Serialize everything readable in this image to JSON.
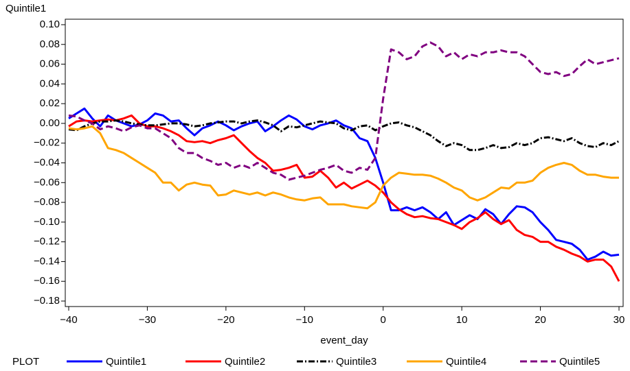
{
  "chart_data": {
    "type": "line",
    "ylabel": "Quintile1",
    "xlabel": "event_day",
    "legend_title": "PLOT",
    "x": [
      -40,
      -39,
      -38,
      -37,
      -36,
      -35,
      -34,
      -33,
      -32,
      -31,
      -30,
      -29,
      -28,
      -27,
      -26,
      -25,
      -24,
      -23,
      -22,
      -21,
      -20,
      -19,
      -18,
      -17,
      -16,
      -15,
      -14,
      -13,
      -12,
      -11,
      -10,
      -9,
      -8,
      -7,
      -6,
      -5,
      -4,
      -3,
      -2,
      -1,
      0,
      1,
      2,
      3,
      4,
      5,
      6,
      7,
      8,
      9,
      10,
      11,
      12,
      13,
      14,
      15,
      16,
      17,
      18,
      19,
      20,
      21,
      22,
      23,
      24,
      25,
      26,
      27,
      28,
      29,
      30
    ],
    "series": [
      {
        "name": "Quintile1",
        "color": "#0000ff",
        "style": "solid",
        "values": [
          0.005,
          0.01,
          0.015,
          0.005,
          -0.003,
          0.008,
          0.003,
          0.0,
          -0.003,
          -0.001,
          0.003,
          0.01,
          0.008,
          0.002,
          0.003,
          -0.005,
          -0.012,
          -0.005,
          -0.002,
          0.002,
          -0.002,
          -0.007,
          -0.003,
          0.0,
          0.002,
          -0.008,
          -0.003,
          0.003,
          0.008,
          0.004,
          -0.003,
          -0.006,
          -0.002,
          0.0,
          0.003,
          -0.002,
          -0.005,
          -0.015,
          -0.018,
          -0.035,
          -0.06,
          -0.088,
          -0.088,
          -0.085,
          -0.088,
          -0.085,
          -0.09,
          -0.097,
          -0.09,
          -0.103,
          -0.098,
          -0.093,
          -0.097,
          -0.087,
          -0.092,
          -0.102,
          -0.092,
          -0.084,
          -0.085,
          -0.09,
          -0.1,
          -0.108,
          -0.118,
          -0.12,
          -0.122,
          -0.128,
          -0.138,
          -0.135,
          -0.13,
          -0.134,
          -0.133
        ]
      },
      {
        "name": "Quintile2",
        "color": "#ff0000",
        "style": "solid",
        "values": [
          -0.003,
          0.002,
          0.003,
          0.002,
          0.003,
          0.004,
          0.003,
          0.005,
          0.008,
          0.0,
          -0.003,
          -0.003,
          -0.005,
          -0.008,
          -0.012,
          -0.018,
          -0.019,
          -0.018,
          -0.02,
          -0.017,
          -0.015,
          -0.012,
          -0.02,
          -0.028,
          -0.035,
          -0.04,
          -0.048,
          -0.047,
          -0.045,
          -0.042,
          -0.055,
          -0.054,
          -0.048,
          -0.055,
          -0.065,
          -0.06,
          -0.066,
          -0.062,
          -0.058,
          -0.063,
          -0.07,
          -0.08,
          -0.087,
          -0.092,
          -0.095,
          -0.094,
          -0.096,
          -0.097,
          -0.1,
          -0.103,
          -0.107,
          -0.1,
          -0.096,
          -0.09,
          -0.097,
          -0.102,
          -0.098,
          -0.108,
          -0.113,
          -0.115,
          -0.12,
          -0.12,
          -0.125,
          -0.128,
          -0.132,
          -0.135,
          -0.14,
          -0.138,
          -0.138,
          -0.145,
          -0.16
        ]
      },
      {
        "name": "Quintile3",
        "color": "#000000",
        "style": "dashdot",
        "values": [
          -0.006,
          -0.007,
          -0.003,
          0.0,
          0.002,
          0.002,
          0.003,
          0.002,
          0.0,
          -0.001,
          -0.002,
          -0.002,
          -0.001,
          0.0,
          0.0,
          -0.001,
          -0.003,
          -0.002,
          0.0,
          0.001,
          0.002,
          0.002,
          0.0,
          0.002,
          0.003,
          0.001,
          -0.002,
          -0.008,
          -0.003,
          -0.004,
          -0.002,
          0.0,
          0.002,
          0.001,
          0.0,
          -0.005,
          -0.007,
          -0.003,
          -0.002,
          -0.007,
          -0.003,
          0.0,
          0.001,
          -0.002,
          -0.004,
          -0.008,
          -0.012,
          -0.018,
          -0.023,
          -0.02,
          -0.022,
          -0.027,
          -0.027,
          -0.025,
          -0.022,
          -0.025,
          -0.024,
          -0.02,
          -0.022,
          -0.02,
          -0.015,
          -0.014,
          -0.016,
          -0.018,
          -0.015,
          -0.02,
          -0.023,
          -0.024,
          -0.02,
          -0.022,
          -0.018
        ]
      },
      {
        "name": "Quintile4",
        "color": "#ffa500",
        "style": "solid",
        "values": [
          -0.005,
          -0.006,
          -0.005,
          -0.003,
          -0.01,
          -0.025,
          -0.027,
          -0.03,
          -0.035,
          -0.04,
          -0.045,
          -0.05,
          -0.06,
          -0.06,
          -0.068,
          -0.062,
          -0.06,
          -0.062,
          -0.063,
          -0.073,
          -0.072,
          -0.068,
          -0.07,
          -0.072,
          -0.07,
          -0.073,
          -0.07,
          -0.072,
          -0.075,
          -0.077,
          -0.078,
          -0.076,
          -0.075,
          -0.082,
          -0.082,
          -0.082,
          -0.084,
          -0.085,
          -0.086,
          -0.08,
          -0.063,
          -0.055,
          -0.05,
          -0.051,
          -0.052,
          -0.052,
          -0.053,
          -0.056,
          -0.06,
          -0.065,
          -0.068,
          -0.075,
          -0.078,
          -0.075,
          -0.07,
          -0.065,
          -0.066,
          -0.06,
          -0.06,
          -0.058,
          -0.05,
          -0.045,
          -0.042,
          -0.04,
          -0.042,
          -0.048,
          -0.052,
          -0.052,
          -0.054,
          -0.055,
          -0.055
        ]
      },
      {
        "name": "Quintile5",
        "color": "#800080",
        "style": "dashed",
        "values": [
          0.008,
          0.007,
          0.003,
          0.0,
          -0.006,
          -0.003,
          -0.005,
          -0.008,
          -0.004,
          -0.002,
          -0.005,
          -0.005,
          -0.01,
          -0.015,
          -0.025,
          -0.03,
          -0.03,
          -0.035,
          -0.038,
          -0.042,
          -0.04,
          -0.045,
          -0.042,
          -0.045,
          -0.04,
          -0.045,
          -0.05,
          -0.052,
          -0.057,
          -0.055,
          -0.053,
          -0.05,
          -0.047,
          -0.045,
          -0.042,
          -0.048,
          -0.05,
          -0.045,
          -0.047,
          -0.035,
          0.025,
          0.075,
          0.072,
          0.065,
          0.068,
          0.078,
          0.082,
          0.078,
          0.068,
          0.072,
          0.065,
          0.07,
          0.068,
          0.072,
          0.072,
          0.074,
          0.072,
          0.072,
          0.068,
          0.06,
          0.052,
          0.05,
          0.052,
          0.048,
          0.05,
          0.058,
          0.065,
          0.06,
          0.062,
          0.064,
          0.066
        ]
      }
    ],
    "xlim": [
      -40,
      30
    ],
    "xticks": [
      {
        "value": -40,
        "label": "−40"
      },
      {
        "value": -30,
        "label": "−30"
      },
      {
        "value": -20,
        "label": "−20"
      },
      {
        "value": -10,
        "label": "−10"
      },
      0,
      10,
      20,
      30
    ],
    "ylim": [
      -0.18,
      0.1
    ],
    "yticks": [
      {
        "value": 0.1,
        "label": "0.10"
      },
      {
        "value": 0.08,
        "label": "0.08"
      },
      {
        "value": 0.06,
        "label": "0.06"
      },
      {
        "value": 0.04,
        "label": "0.04"
      },
      {
        "value": 0.02,
        "label": "0.02"
      },
      {
        "value": 0.0,
        "label": "0.00"
      },
      {
        "value": -0.02,
        "label": "−0.02"
      },
      {
        "value": -0.04,
        "label": "−0.04"
      },
      {
        "value": -0.06,
        "label": "−0.06"
      },
      {
        "value": -0.08,
        "label": "−0.08"
      },
      {
        "value": -0.1,
        "label": "−0.10"
      },
      {
        "value": -0.12,
        "label": "−0.12"
      },
      {
        "value": -0.14,
        "label": "−0.14"
      },
      {
        "value": -0.16,
        "label": "−0.16"
      },
      {
        "value": -0.18,
        "label": "−0.18"
      }
    ],
    "grid": false
  }
}
